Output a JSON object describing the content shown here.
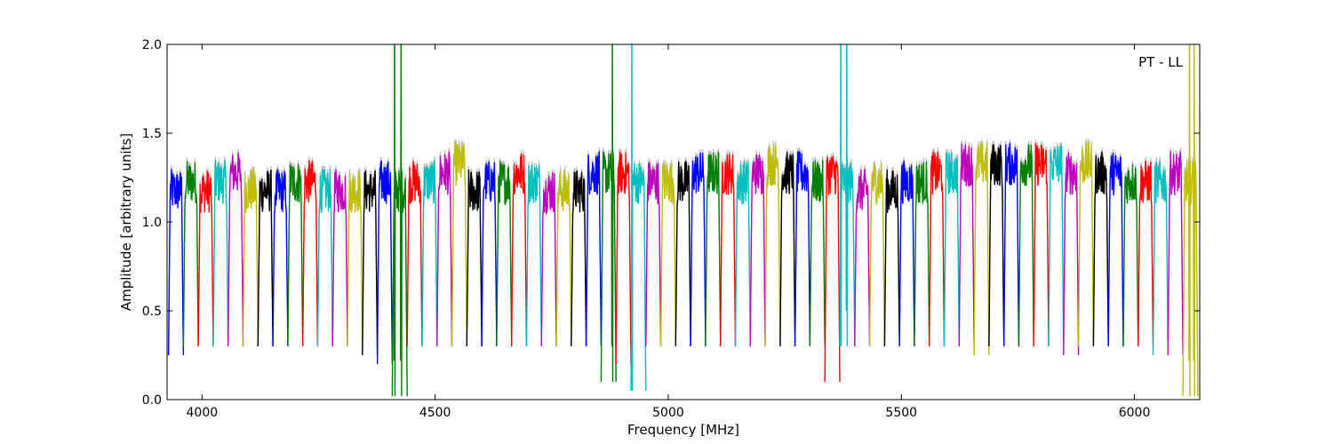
{
  "chart_data": {
    "type": "line",
    "title": "",
    "xlabel": "Frequency [MHz]",
    "ylabel": "Amplitude [arbitrary units]",
    "annotation": "PT - LL",
    "xlim": [
      3925,
      6140
    ],
    "ylim": [
      0.0,
      2.0
    ],
    "x_ticks": [
      4000,
      4500,
      5000,
      5500,
      6000
    ],
    "y_ticks": [
      0.0,
      0.5,
      1.0,
      1.5,
      2.0
    ],
    "x_tick_labels": [
      "4000",
      "4500",
      "5000",
      "5500",
      "6000"
    ],
    "y_tick_labels": [
      "0.0",
      "0.5",
      "1.0",
      "1.5",
      "2.0"
    ],
    "grid": false,
    "legend": false,
    "color_cycle": [
      "#0000ff",
      "#008000",
      "#ff0000",
      "#00bfbf",
      "#bf00bf",
      "#bfbf00",
      "#000000"
    ],
    "background_trace_color": "#bfbfbf",
    "channel_width_mhz": 32,
    "channel_starts_mhz": [
      3928,
      3960,
      3992,
      4024,
      4056,
      4088,
      4120,
      4152,
      4184,
      4216,
      4248,
      4280,
      4312,
      4344,
      4376,
      4408,
      4440,
      4472,
      4504,
      4536,
      4568,
      4600,
      4632,
      4664,
      4696,
      4728,
      4760,
      4792,
      4824,
      4856,
      4888,
      4920,
      4952,
      4984,
      5016,
      5048,
      5080,
      5112,
      5144,
      5176,
      5208,
      5240,
      5272,
      5304,
      5336,
      5368,
      5400,
      5432,
      5464,
      5496,
      5528,
      5560,
      5592,
      5624,
      5656,
      5688,
      5720,
      5752,
      5784,
      5816,
      5848,
      5880,
      5912,
      5944,
      5976,
      6008,
      6040,
      6072,
      6104
    ],
    "channel_typical_amplitude": [
      1.2,
      1.25,
      1.2,
      1.25,
      1.3,
      1.2,
      1.2,
      1.2,
      1.25,
      1.25,
      1.2,
      1.2,
      1.2,
      1.2,
      1.25,
      1.2,
      1.25,
      1.25,
      1.3,
      1.35,
      1.2,
      1.25,
      1.25,
      1.3,
      1.25,
      1.2,
      1.2,
      1.2,
      1.3,
      1.3,
      1.3,
      1.25,
      1.25,
      1.25,
      1.25,
      1.3,
      1.3,
      1.3,
      1.25,
      1.3,
      1.35,
      1.3,
      1.3,
      1.25,
      1.3,
      1.25,
      1.2,
      1.25,
      1.2,
      1.25,
      1.25,
      1.3,
      1.3,
      1.35,
      1.35,
      1.35,
      1.35,
      1.35,
      1.35,
      1.35,
      1.3,
      1.35,
      1.3,
      1.3,
      1.25,
      1.25,
      1.25,
      1.3,
      1.25
    ],
    "channel_min_amplitude": [
      0.25,
      0.3,
      0.3,
      0.3,
      0.3,
      0.3,
      0.3,
      0.3,
      0.3,
      0.3,
      0.3,
      0.3,
      0.3,
      0.25,
      0.2,
      0.02,
      0.3,
      0.3,
      0.3,
      0.3,
      0.3,
      0.3,
      0.3,
      0.3,
      0.3,
      0.3,
      0.3,
      0.3,
      0.3,
      0.1,
      0.2,
      0.05,
      0.3,
      0.3,
      0.3,
      0.3,
      0.3,
      0.3,
      0.3,
      0.3,
      0.3,
      0.3,
      0.3,
      0.3,
      0.1,
      0.3,
      0.3,
      0.3,
      0.3,
      0.3,
      0.3,
      0.3,
      0.3,
      0.3,
      0.25,
      0.3,
      0.3,
      0.3,
      0.3,
      0.3,
      0.25,
      0.3,
      0.3,
      0.3,
      0.3,
      0.3,
      0.25,
      0.25,
      0.02
    ],
    "spikes": [
      {
        "x": 4413,
        "y": 2.0
      },
      {
        "x": 4427,
        "y": 2.0
      },
      {
        "x": 4880,
        "y": 2.0
      },
      {
        "x": 4922,
        "y": 2.0
      },
      {
        "x": 5370,
        "y": 2.0
      },
      {
        "x": 5383,
        "y": 2.0
      },
      {
        "x": 6118,
        "y": 2.0
      },
      {
        "x": 6128,
        "y": 2.0
      }
    ]
  }
}
